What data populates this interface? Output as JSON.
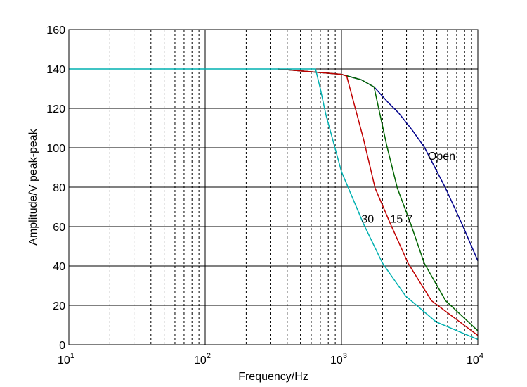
{
  "chart_data": {
    "type": "line",
    "title": "",
    "xlabel": "Frequency/Hz",
    "ylabel": "Amplitude/V peak-peak",
    "xscale": "log",
    "xlim": [
      10,
      10000
    ],
    "ylim": [
      0,
      160
    ],
    "x_ticks": [
      10,
      100,
      1000,
      10000
    ],
    "x_tick_base": "10",
    "x_tick_exponents": [
      "1",
      "2",
      "3",
      "4"
    ],
    "y_ticks": [
      0,
      20,
      40,
      60,
      80,
      100,
      120,
      140,
      160
    ],
    "grid": true,
    "minor_grid": "dashed",
    "series": [
      {
        "name": "Open",
        "color": "#00008b",
        "x": [
          340,
          1000,
          1400,
          1733,
          2200,
          2630,
          3300,
          4050,
          5800,
          7640,
          10000
        ],
        "y": [
          140,
          137.3,
          134.5,
          130.9,
          123,
          117.6,
          109,
          100.4,
          79.5,
          61.4,
          42.6
        ]
      },
      {
        "name": "7",
        "color": "#006400",
        "x": [
          340,
          1000,
          1400,
          1733,
          2150,
          2570,
          3220,
          4050,
          5800,
          10000
        ],
        "y": [
          140,
          137.3,
          134.5,
          130.9,
          101,
          79.5,
          61.4,
          41.4,
          22.4,
          7.1
        ]
      },
      {
        "name": "15",
        "color": "#c00000",
        "x": [
          340,
          1000,
          1092,
          1450,
          1765,
          2285,
          3080,
          4570,
          10000
        ],
        "y": [
          140,
          137.3,
          136.4,
          104.5,
          79.5,
          61.4,
          41.4,
          22.4,
          4.75
        ]
      },
      {
        "name": "30",
        "color": "#00b0b0",
        "x": [
          10,
          645,
          700,
          771,
          1000,
          1450,
          2000,
          2960,
          4940,
          10000
        ],
        "y": [
          140,
          140,
          130,
          116.4,
          87.9,
          61.4,
          41.4,
          24.7,
          11.6,
          2.7
        ]
      }
    ],
    "annotations": [
      {
        "text": "Open",
        "x": 4300,
        "y": 94
      },
      {
        "text": "30",
        "x": 1400,
        "y": 62
      },
      {
        "text": "15",
        "x": 2280,
        "y": 62
      },
      {
        "text": "7",
        "x": 3000,
        "y": 62
      }
    ]
  }
}
